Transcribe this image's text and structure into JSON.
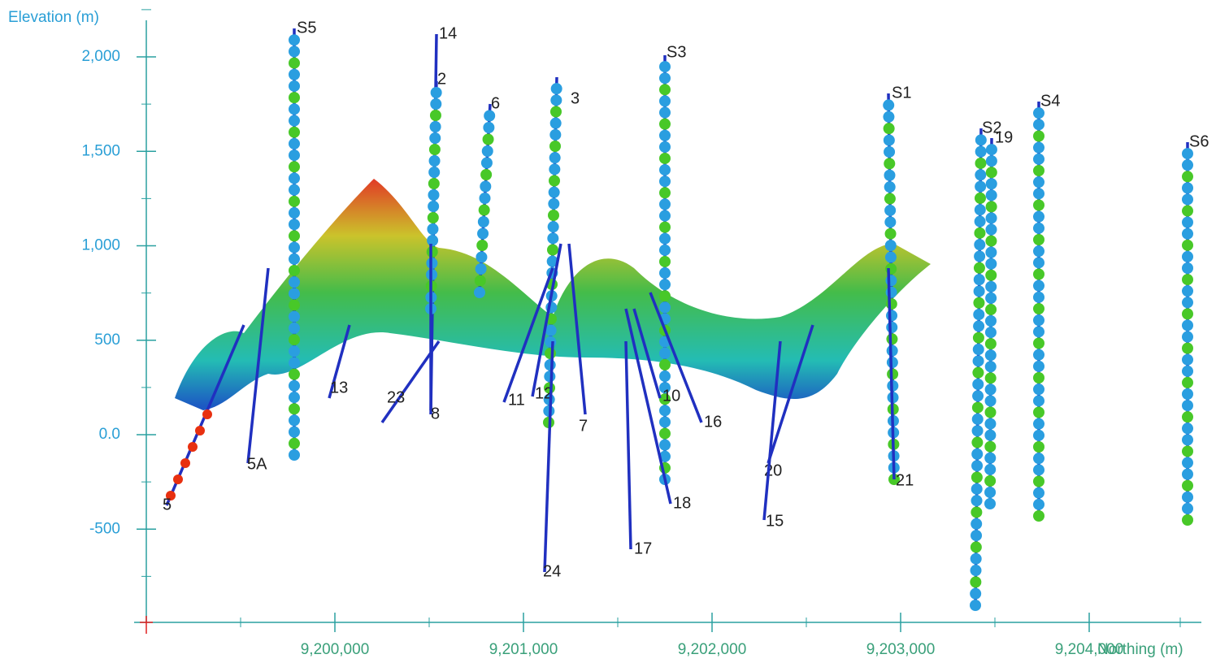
{
  "y_axis": {
    "title": "Elevation (m)",
    "ticks": [
      {
        "value": 2000,
        "label": "2,000"
      },
      {
        "value": 1500,
        "label": "1,500"
      },
      {
        "value": 1000,
        "label": "1,000"
      },
      {
        "value": 500,
        "label": "500"
      },
      {
        "value": 0,
        "label": "0.0"
      },
      {
        "value": -500,
        "label": "-500"
      }
    ]
  },
  "x_axis": {
    "title": "Northing (m)",
    "ticks": [
      {
        "value": 9200000,
        "label": "9,200,000"
      },
      {
        "value": 9201000,
        "label": "9,201,000"
      },
      {
        "value": 9202000,
        "label": "9,202,000"
      },
      {
        "value": 9203000,
        "label": "9,203,000"
      },
      {
        "value": 9204000,
        "label": "9,204,000"
      }
    ]
  },
  "boreholes": [
    "S5",
    "14",
    "2",
    "6",
    "3",
    "S3",
    "S1",
    "S2",
    "19",
    "S4",
    "S6",
    "5A",
    "13",
    "23",
    "8",
    "11",
    "12",
    "7",
    "10",
    "16",
    "18",
    "17",
    "24",
    "20",
    "15",
    "21",
    "5"
  ]
}
